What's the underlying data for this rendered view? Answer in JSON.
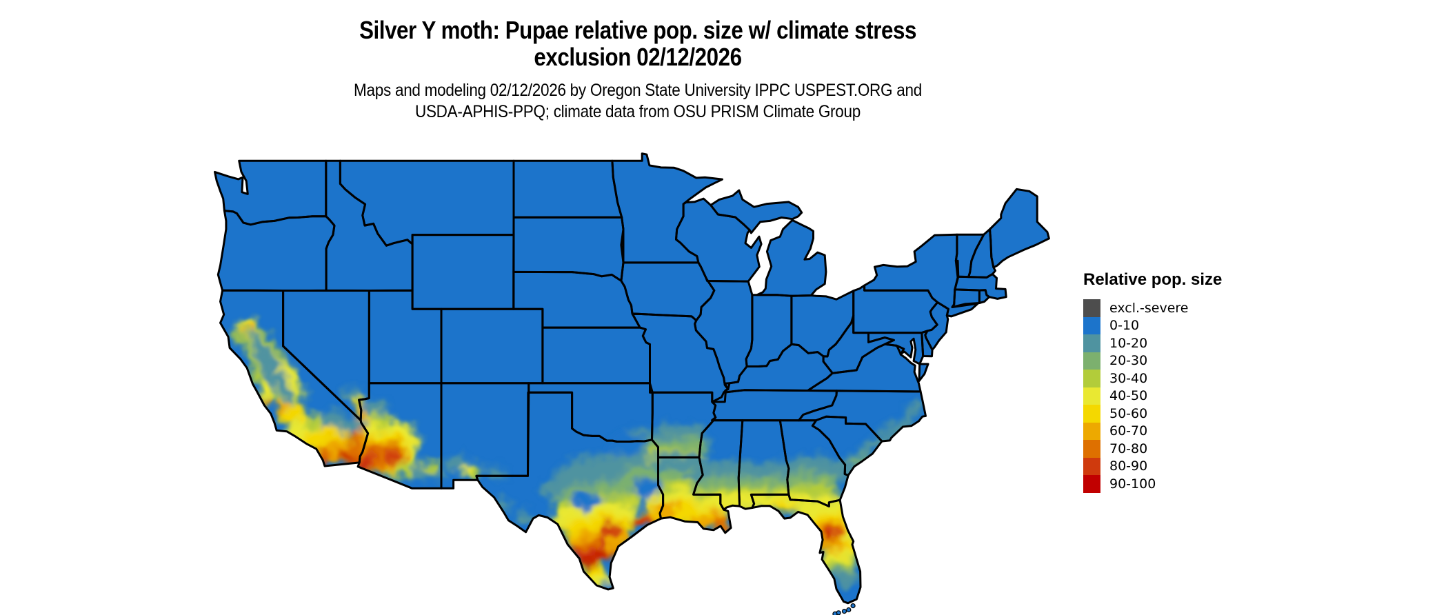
{
  "title": {
    "line1": "Silver Y moth: Pupae relative pop. size w/ climate stress",
    "line2": "exclusion 02/12/2026"
  },
  "subtitle": {
    "line1": "Maps and modeling 02/12/2026 by Oregon State University IPPC USPEST.ORG and",
    "line2": "USDA-APHIS-PPQ; climate data from OSU PRISM Climate Group"
  },
  "legend": {
    "title": "Relative pop. size",
    "items": [
      {
        "label": "excl.-severe",
        "color": "#4d4d4d"
      },
      {
        "label": "0-10",
        "color": "#1c74cb"
      },
      {
        "label": "10-20",
        "color": "#4f93a0"
      },
      {
        "label": "20-30",
        "color": "#7cb06e"
      },
      {
        "label": "30-40",
        "color": "#b2cc3a"
      },
      {
        "label": "40-50",
        "color": "#e9e832"
      },
      {
        "label": "50-60",
        "color": "#f4d800"
      },
      {
        "label": "60-70",
        "color": "#eda900"
      },
      {
        "label": "70-80",
        "color": "#de7000"
      },
      {
        "label": "80-90",
        "color": "#cf3a0d"
      },
      {
        "label": "90-100",
        "color": "#c10000"
      }
    ]
  },
  "map": {
    "name": "Contiguous United States",
    "base_value": "0-10",
    "base_color": "#1c74cb",
    "border_color": "#000000",
    "water_color": "#ffffff"
  }
}
